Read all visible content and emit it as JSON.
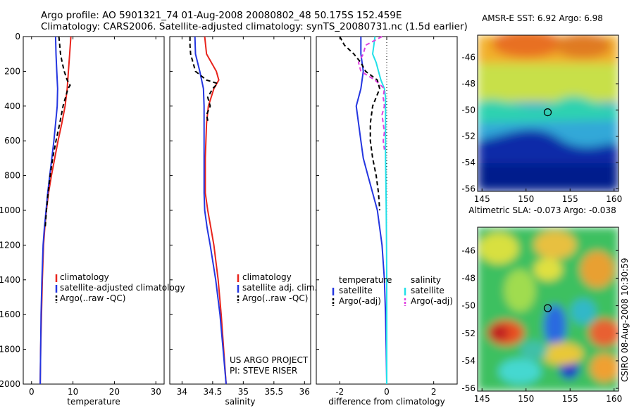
{
  "header": {
    "line1": "Argo profile: AO 5901321_74 01-Aug-2008 20080802_48 50.175S 152.459E",
    "line2": "Climatology: CARS2006. Satellite-adjusted climatology: synTS_20080731.nc (1.5d earlier)"
  },
  "side_label": "CSIRO 08-Aug-2008 10:30:59",
  "colors": {
    "clim": "#e8241c",
    "sat": "#2436e0",
    "argo": "#000000",
    "sal_sat": "#22e0e8",
    "sal_argo": "#e040e0"
  },
  "chart_data": [
    {
      "type": "line",
      "xlabel": "temperature",
      "ylabel": "",
      "xlim": [
        -2,
        32
      ],
      "ylim": [
        2000,
        0
      ],
      "xticks": [
        0,
        10,
        20,
        30
      ],
      "yticks": [
        0,
        200,
        400,
        600,
        800,
        1000,
        1200,
        1400,
        1600,
        1800,
        2000
      ],
      "legend": [
        "climatology",
        "satellite-adjusted climatology",
        "Argo(..raw -QC)"
      ],
      "series": [
        {
          "name": "climatology",
          "y": [
            0,
            100,
            200,
            300,
            400,
            500,
            600,
            700,
            800,
            900,
            1000,
            1100,
            1200,
            1400,
            1600,
            1800,
            2000
          ],
          "x": [
            9.5,
            9.2,
            8.9,
            8.6,
            8.1,
            7.3,
            6.4,
            5.6,
            4.8,
            4.1,
            3.6,
            3.2,
            2.9,
            2.6,
            2.4,
            2.2,
            2.1
          ]
        },
        {
          "name": "satellite-adjusted climatology",
          "y": [
            0,
            100,
            200,
            300,
            400,
            500,
            600,
            700,
            800,
            900,
            1000,
            1100,
            1200,
            1400,
            1600,
            1800,
            2000
          ],
          "x": [
            5.8,
            5.9,
            6.1,
            6.3,
            6.2,
            5.8,
            5.4,
            4.9,
            4.4,
            3.9,
            3.5,
            3.1,
            2.8,
            2.5,
            2.3,
            2.2,
            2.1
          ]
        },
        {
          "name": "Argo(..raw -QC)",
          "y": [
            0,
            50,
            100,
            150,
            200,
            250,
            280,
            300,
            350,
            400,
            500,
            600,
            700,
            800,
            900,
            1000,
            1100
          ],
          "x": [
            6.6,
            6.8,
            7.0,
            7.4,
            7.9,
            8.6,
            9.3,
            8.8,
            8.2,
            7.6,
            6.8,
            5.9,
            5.1,
            4.5,
            4.0,
            3.6,
            3.3
          ]
        }
      ]
    },
    {
      "type": "line",
      "xlabel": "salinity",
      "ylabel": "",
      "xlim": [
        33.8,
        36.1
      ],
      "ylim": [
        2000,
        0
      ],
      "xticks": [
        34,
        34.5,
        35,
        35.5,
        36
      ],
      "xticklabels": [
        "34",
        "34.5",
        "35",
        "35.5",
        "36"
      ],
      "legend": [
        "climatology",
        "satellite adj. clim.",
        "Argo(..raw -QC)"
      ],
      "series": [
        {
          "name": "climatology",
          "y": [
            0,
            100,
            200,
            250,
            300,
            400,
            500,
            600,
            700,
            800,
            900,
            1000,
            1100,
            1200,
            1400,
            1600,
            1800,
            2000
          ],
          "x": [
            34.37,
            34.4,
            34.56,
            34.6,
            34.52,
            34.43,
            34.4,
            34.39,
            34.38,
            34.38,
            34.38,
            34.42,
            34.47,
            34.52,
            34.59,
            34.64,
            34.68,
            34.72
          ]
        },
        {
          "name": "satellite adj. clim.",
          "y": [
            0,
            100,
            200,
            300,
            400,
            500,
            600,
            700,
            800,
            900,
            1000,
            1100,
            1200,
            1400,
            1600,
            1800,
            2000
          ],
          "x": [
            34.21,
            34.22,
            34.29,
            34.35,
            34.36,
            34.36,
            34.36,
            34.36,
            34.36,
            34.36,
            34.37,
            34.41,
            34.46,
            34.55,
            34.62,
            34.67,
            34.72
          ]
        },
        {
          "name": "Argo(..raw -QC)",
          "y": [
            0,
            50,
            100,
            150,
            200,
            250,
            270,
            300,
            350,
            400,
            450,
            500
          ],
          "x": [
            34.13,
            34.13,
            34.14,
            34.18,
            34.22,
            34.4,
            34.58,
            34.5,
            34.42,
            34.46,
            34.4,
            34.43
          ]
        }
      ]
    },
    {
      "type": "line",
      "xlabel": "difference from climatology",
      "ylabel": "",
      "xlim": [
        -3,
        3
      ],
      "ylim": [
        2000,
        0
      ],
      "xticks": [
        -2,
        0,
        2
      ],
      "legend_groups": [
        {
          "title": "temperature",
          "entries": [
            "satellite",
            "Argo(-adj)"
          ]
        },
        {
          "title": "salinity",
          "entries": [
            "satellite",
            "Argo(-adj)"
          ]
        }
      ],
      "series": [
        {
          "name": "temperature satellite",
          "y": [
            0,
            100,
            200,
            300,
            400,
            500,
            600,
            700,
            800,
            900,
            1000,
            1100,
            1200,
            1400,
            1600,
            1800,
            2000
          ],
          "x": [
            -1.1,
            -1.1,
            -1.0,
            -1.1,
            -1.3,
            -1.2,
            -1.1,
            -1.0,
            -0.8,
            -0.6,
            -0.4,
            -0.3,
            -0.2,
            -0.1,
            -0.05,
            -0.02,
            0.0
          ]
        },
        {
          "name": "temperature Argo(-adj)",
          "y": [
            0,
            50,
            100,
            150,
            200,
            250,
            300,
            350,
            400,
            500,
            600,
            700,
            800,
            900,
            1000
          ],
          "x": [
            -2.0,
            -1.8,
            -1.4,
            -1.1,
            -0.9,
            -0.4,
            -0.3,
            -0.45,
            -0.6,
            -0.7,
            -0.7,
            -0.6,
            -0.45,
            -0.35,
            -0.3
          ]
        },
        {
          "name": "salinity satellite",
          "y": [
            0,
            50,
            100,
            150,
            200,
            250,
            300,
            350,
            400,
            500,
            600,
            700,
            800,
            900,
            1000,
            1200,
            1400,
            1600,
            1800,
            2000
          ],
          "x": [
            -0.5,
            -0.55,
            -0.6,
            -0.45,
            -0.35,
            -0.25,
            -0.1,
            -0.05,
            -0.05,
            -0.05,
            -0.05,
            -0.05,
            -0.04,
            -0.03,
            -0.02,
            -0.01,
            0.0,
            0.0,
            0.0,
            0.0
          ]
        },
        {
          "name": "salinity Argo(-adj)",
          "y": [
            0,
            50,
            100,
            150,
            200,
            250,
            300,
            350,
            400,
            450,
            500,
            550,
            600,
            650
          ],
          "x": [
            -0.2,
            -0.9,
            -1.0,
            -1.2,
            -1.1,
            -0.5,
            -0.1,
            -0.15,
            -0.1,
            -0.2,
            -0.15,
            -0.1,
            -0.15,
            -0.1
          ]
        }
      ]
    },
    {
      "type": "heatmap",
      "title": "AMSR-E SST: 6.92 Argo: 6.98",
      "xlim": [
        144.5,
        160.5
      ],
      "ylim": [
        -56.2,
        -44.3
      ],
      "xticks": [
        145,
        150,
        155,
        160
      ],
      "yticks": [
        -46,
        -48,
        -50,
        -52,
        -54,
        -56
      ],
      "marker": {
        "lon": 152.459,
        "lat": -50.175
      }
    },
    {
      "type": "heatmap",
      "title": "Altimetric SLA: -0.073 Argo: -0.038",
      "xlim": [
        144.5,
        160.5
      ],
      "ylim": [
        -56.2,
        -44.3
      ],
      "xticks": [
        145,
        150,
        155,
        160
      ],
      "yticks": [
        -46,
        -48,
        -50,
        -52,
        -54,
        -56
      ],
      "marker": {
        "lon": 152.459,
        "lat": -50.175
      }
    }
  ],
  "annotation": {
    "line1": "US ARGO PROJECT",
    "line2": "PI: STEVE RISER"
  }
}
